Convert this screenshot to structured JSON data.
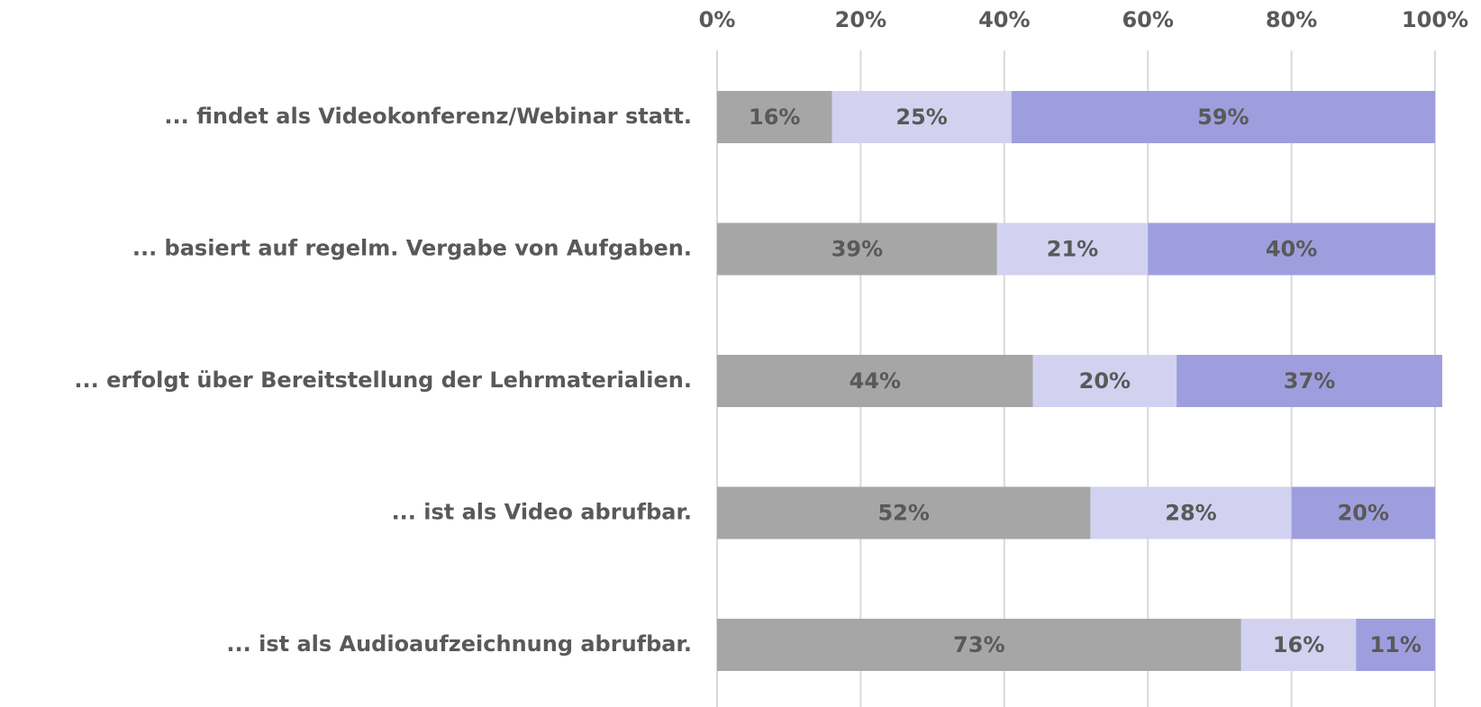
{
  "chart_data": {
    "type": "stacked-bar-horizontal",
    "categories": [
      "... findet als Videokonferenz/Webinar statt.",
      "... basiert auf regelm. Vergabe von Aufgaben.",
      "... erfolgt über Bereitstellung der Lehrmaterialien.",
      "... ist als Video abrufbar.",
      "... ist als Audioaufzeichnung abrufbar."
    ],
    "series": [
      {
        "color": "#a6a6a6",
        "values": [
          16,
          39,
          44,
          52,
          73
        ],
        "value_labels": [
          "16%",
          "39%",
          "44%",
          "52%",
          "73%"
        ]
      },
      {
        "color": "#d2d2f0",
        "values": [
          25,
          21,
          20,
          28,
          16
        ],
        "value_labels": [
          "25%",
          "21%",
          "20%",
          "28%",
          "16%"
        ]
      },
      {
        "color": "#9e9ede",
        "values": [
          59,
          40,
          37,
          20,
          11
        ],
        "value_labels": [
          "59%",
          "40%",
          "37%",
          "20%",
          "11%"
        ]
      }
    ],
    "xlim": [
      0,
      100
    ],
    "xticks": [
      {
        "value": 0,
        "label": "0%"
      },
      {
        "value": 20,
        "label": "20%"
      },
      {
        "value": 40,
        "label": "40%"
      },
      {
        "value": 60,
        "label": "60%"
      },
      {
        "value": 80,
        "label": "80%"
      },
      {
        "value": 100,
        "label": "100%"
      }
    ],
    "grid": true
  }
}
